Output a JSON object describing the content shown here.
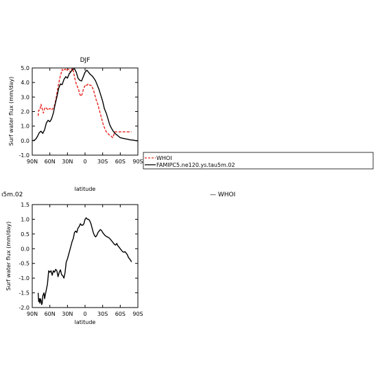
{
  "chart_data": [
    {
      "type": "line",
      "title": "DJF",
      "xlabel": "latitude",
      "ylabel": "Surf water flux (mm/day)",
      "xlim": [
        90,
        -90
      ],
      "ylim": [
        -1.0,
        5.0
      ],
      "x_ticks": [
        {
          "value": 90,
          "label": "90N"
        },
        {
          "value": 60,
          "label": "60N"
        },
        {
          "value": 30,
          "label": "30N"
        },
        {
          "value": 0,
          "label": "0"
        },
        {
          "value": -30,
          "label": "30S"
        },
        {
          "value": -60,
          "label": "60S"
        },
        {
          "value": -90,
          "label": "90S"
        }
      ],
      "y_ticks": [
        "-1.0",
        "0.0",
        "1.0",
        "2.0",
        "3.0",
        "4.0",
        "5.0"
      ],
      "grid": false,
      "legend_position": "right",
      "series": [
        {
          "name": "WHOI",
          "color": "#e8231f",
          "dash": "dashed",
          "x": [
            80,
            79,
            77,
            75,
            73,
            71,
            69,
            67,
            65,
            63,
            61,
            59,
            57,
            55,
            53,
            51,
            49,
            47,
            45,
            43,
            41,
            39,
            37,
            35,
            33,
            31,
            29,
            27,
            25,
            23,
            21,
            19,
            17,
            15,
            13,
            11,
            9,
            7,
            5,
            3,
            1,
            -1,
            -3,
            -5,
            -7,
            -9,
            -11,
            -13,
            -15,
            -17,
            -19,
            -21,
            -23,
            -25,
            -27,
            -29,
            -31,
            -33,
            -35,
            -37,
            -39,
            -41,
            -43,
            -45,
            -47,
            -49,
            -51,
            -53,
            -55,
            -57,
            -59,
            -61,
            -63,
            -65,
            -67,
            -69,
            -71,
            -73,
            -75,
            -77,
            -79
          ],
          "y": [
            1.7,
            2.1,
            2.1,
            2.5,
            2.2,
            1.9,
            2.2,
            2.3,
            2.2,
            2.1,
            2.2,
            2.2,
            2.1,
            2.2,
            2.3,
            2.6,
            3.0,
            3.5,
            3.9,
            4.3,
            4.6,
            4.9,
            4.8,
            4.9,
            4.9,
            4.8,
            4.9,
            4.9,
            4.7,
            4.9,
            5.0,
            4.6,
            4.2,
            3.9,
            3.7,
            3.5,
            3.2,
            3.05,
            3.2,
            3.5,
            3.7,
            3.85,
            3.8,
            3.9,
            3.85,
            3.8,
            3.8,
            3.6,
            3.4,
            3.1,
            2.8,
            2.6,
            2.3,
            2.0,
            1.7,
            1.4,
            1.1,
            0.9,
            0.7,
            0.55,
            0.5,
            0.4,
            0.35,
            0.3,
            0.2,
            0.4,
            0.6,
            0.6,
            0.6,
            0.6,
            0.6,
            0.6,
            0.6,
            0.6,
            0.6,
            0.6,
            0.6,
            0.6,
            0.6,
            0.6,
            0.6
          ]
        },
        {
          "name": "FAMIPC5.ne120.ys.tau5m.02",
          "color": "#000000",
          "dash": "solid",
          "x": [
            90,
            87,
            84,
            81,
            78,
            75,
            72,
            69,
            66,
            63,
            60,
            57,
            54,
            51,
            48,
            45,
            42,
            39,
            36,
            33,
            30,
            27,
            24,
            21,
            18,
            15,
            12,
            9,
            6,
            3,
            0,
            -3,
            -6,
            -9,
            -12,
            -15,
            -18,
            -21,
            -24,
            -27,
            -30,
            -33,
            -36,
            -39,
            -42,
            -45,
            -48,
            -51,
            -54,
            -57,
            -60,
            -63,
            -66,
            -69,
            -72,
            -75,
            -78,
            -81,
            -84,
            -87,
            -90
          ],
          "y": [
            0.0,
            0.02,
            0.1,
            0.3,
            0.55,
            0.65,
            0.5,
            0.75,
            1.2,
            1.4,
            1.3,
            1.5,
            1.9,
            2.5,
            3.0,
            3.6,
            3.9,
            3.85,
            4.2,
            4.4,
            4.3,
            4.6,
            4.75,
            4.9,
            4.95,
            4.7,
            4.3,
            4.15,
            4.1,
            4.4,
            4.7,
            4.85,
            4.7,
            4.55,
            4.45,
            4.3,
            4.1,
            3.8,
            3.5,
            3.1,
            2.7,
            2.2,
            1.9,
            1.5,
            1.1,
            0.85,
            0.65,
            0.5,
            0.4,
            0.3,
            0.2,
            0.17,
            0.15,
            0.12,
            0.1,
            0.07,
            0.05,
            0.04,
            0.02,
            0.0,
            -0.02
          ]
        }
      ]
    },
    {
      "type": "line",
      "title": "",
      "xlabel": "latitude",
      "ylabel": "Surf water flux (mm/day)",
      "xlim": [
        90,
        -90
      ],
      "ylim": [
        -2.0,
        1.5
      ],
      "x_ticks": [
        {
          "value": 90,
          "label": "90N"
        },
        {
          "value": 60,
          "label": "60N"
        },
        {
          "value": 30,
          "label": "30N"
        },
        {
          "value": 0,
          "label": "0"
        },
        {
          "value": -30,
          "label": "30S"
        },
        {
          "value": -60,
          "label": "60S"
        },
        {
          "value": -90,
          "label": "90S"
        }
      ],
      "y_ticks": [
        "-2.0",
        "-1.5",
        "-1.0",
        "-0.5",
        "0.0",
        "0.5",
        "1.0",
        "1.5"
      ],
      "grid": false,
      "series": [
        {
          "name": "",
          "color": "#000000",
          "dash": "solid",
          "x": [
            80,
            79,
            78,
            77,
            76,
            75,
            74,
            73,
            72,
            70,
            69,
            68,
            66,
            64,
            62,
            60,
            58,
            56,
            54,
            52,
            50,
            48,
            46,
            44,
            42,
            40,
            38,
            36,
            34,
            32,
            30,
            28,
            26,
            24,
            22,
            20,
            18,
            16,
            14,
            12,
            10,
            8,
            6,
            4,
            2,
            0,
            -2,
            -4,
            -6,
            -8,
            -10,
            -12,
            -14,
            -16,
            -18,
            -20,
            -22,
            -24,
            -26,
            -28,
            -30,
            -32,
            -34,
            -36,
            -38,
            -40,
            -42,
            -44,
            -46,
            -48,
            -50,
            -52,
            -54,
            -56,
            -58,
            -60,
            -62,
            -64,
            -66,
            -68,
            -70,
            -72,
            -74,
            -76,
            -78,
            -79
          ],
          "y": [
            -1.5,
            -1.8,
            -1.7,
            -1.85,
            -1.7,
            -1.75,
            -1.9,
            -1.85,
            -1.6,
            -1.5,
            -1.7,
            -1.6,
            -1.4,
            -1.2,
            -0.75,
            -0.8,
            -0.75,
            -0.9,
            -0.75,
            -0.8,
            -0.7,
            -0.75,
            -0.95,
            -0.8,
            -0.72,
            -0.88,
            -0.92,
            -1.0,
            -0.8,
            -0.45,
            -0.35,
            -0.2,
            -0.05,
            0.1,
            0.25,
            0.35,
            0.55,
            0.6,
            0.55,
            0.7,
            0.75,
            0.85,
            0.8,
            0.8,
            0.85,
            1.0,
            1.05,
            1.0,
            1.0,
            0.95,
            0.85,
            0.7,
            0.55,
            0.45,
            0.4,
            0.45,
            0.55,
            0.6,
            0.65,
            0.62,
            0.55,
            0.5,
            0.45,
            0.42,
            0.4,
            0.38,
            0.35,
            0.3,
            0.25,
            0.2,
            0.15,
            0.12,
            0.18,
            0.1,
            0.05,
            0.0,
            -0.05,
            -0.1,
            -0.12,
            -0.1,
            -0.15,
            -0.2,
            -0.3,
            -0.35,
            -0.4,
            -0.45
          ]
        }
      ]
    }
  ],
  "fragments": {
    "cut_label": "ı5m.02",
    "cut_legend": "— WHOI"
  }
}
